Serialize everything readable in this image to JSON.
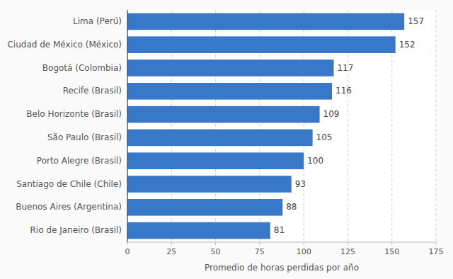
{
  "chart_data": {
    "type": "bar",
    "orientation": "horizontal",
    "categories": [
      "Rio de Janeiro (Brasil)",
      "Buenos Aires (Argentina)",
      "Santiago de Chile (Chile)",
      "Porto Alegre (Brasil)",
      "São Paulo (Brasil)",
      "Belo Horizonte (Brasil)",
      "Recife (Brasil)",
      "Bogotá (Colombia)",
      "Ciudad de México (México)",
      "Lima (Perú)"
    ],
    "values": [
      81,
      88,
      93,
      100,
      105,
      109,
      116,
      117,
      152,
      157
    ],
    "color": "#3878c8",
    "xlabel": "Promedio de horas perdidas por año",
    "xlim": [
      0,
      175
    ],
    "xticks": [
      0,
      25,
      50,
      75,
      100,
      125,
      150,
      175
    ],
    "grid": true,
    "data_labels": true
  }
}
